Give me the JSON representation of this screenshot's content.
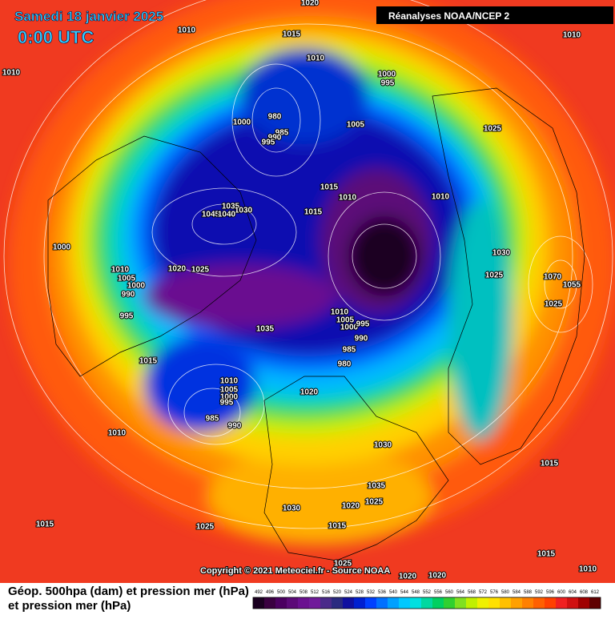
{
  "header": {
    "date": "Samedi 18 janvier 2025",
    "time": "0:00 UTC",
    "source_box": "Réanalyses NOAA/NCEP 2"
  },
  "copyright": "Copyright © 2021 Meteociel.fr - Source NOAA",
  "legend": {
    "title_lines": [
      "Géop. 500hpa (dam) et pression mer (hPa)",
      "et pression mer (hPa)"
    ],
    "levels": [
      492,
      496,
      500,
      504,
      508,
      512,
      516,
      520,
      524,
      528,
      532,
      536,
      540,
      544,
      548,
      552,
      556,
      560,
      564,
      568,
      572,
      576,
      580,
      584,
      588,
      592,
      596,
      600,
      604,
      608,
      612
    ],
    "colors": [
      "#1a0020",
      "#3a0040",
      "#4b0060",
      "#5c0a78",
      "#6a1090",
      "#701a9a",
      "#4a2a8a",
      "#2a2a80",
      "#1010a0",
      "#0020d0",
      "#0040ff",
      "#0070ff",
      "#00a0ff",
      "#00c8ff",
      "#00e0e0",
      "#00d8a0",
      "#00d060",
      "#30d030",
      "#80e020",
      "#c0f000",
      "#f0f000",
      "#ffe000",
      "#ffc000",
      "#ffa000",
      "#ff8000",
      "#ff6000",
      "#ff4000",
      "#f02020",
      "#d01010",
      "#a00000",
      "#600000"
    ]
  },
  "isobar_labels": [
    "1020",
    "1010",
    "1015",
    "1010",
    "1010",
    "1010",
    "1000",
    "995",
    "980",
    "1000",
    "985",
    "990",
    "995",
    "1005",
    "1025",
    "1015",
    "1010",
    "1010",
    "1035",
    "1030",
    "1045",
    "1040",
    "1015",
    "1000",
    "1030",
    "1010",
    "1020",
    "1025",
    "1005",
    "1000",
    "990",
    "1025",
    "1070",
    "1055",
    "1025",
    "995",
    "1010",
    "1005",
    "1000",
    "995",
    "1035",
    "990",
    "985",
    "1015",
    "980",
    "1010",
    "1005",
    "1000",
    "995",
    "1020",
    "985",
    "990",
    "1010",
    "1030",
    "1035",
    "1025",
    "1030",
    "1020",
    "1015",
    "1025",
    "1015",
    "1015",
    "1015",
    "1010",
    "1025",
    "1020",
    "1020"
  ]
}
